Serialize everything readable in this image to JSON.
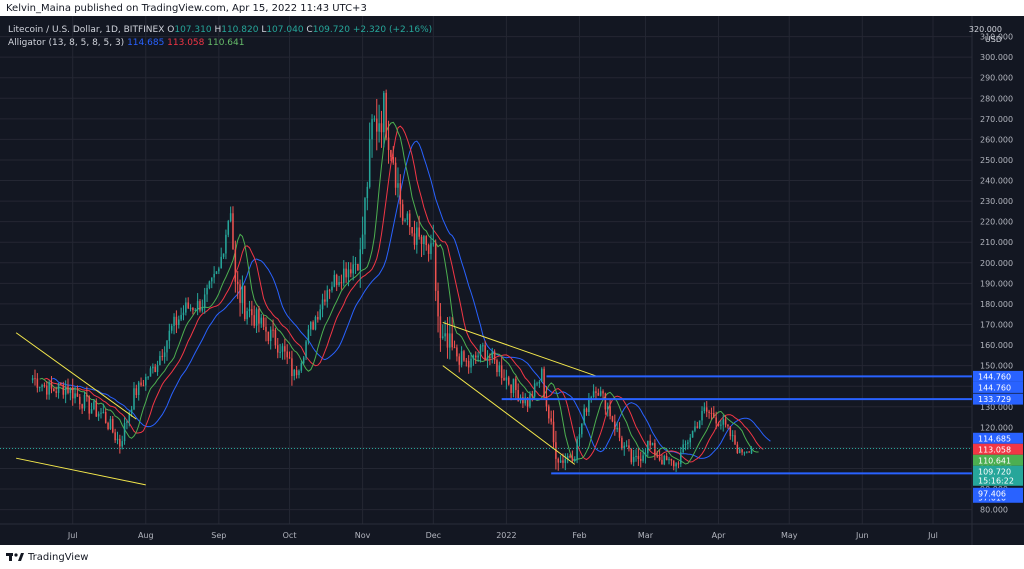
{
  "publisher": "Kelvin_Maina published on TradingView.com, Apr 15, 2022 11:43 UTC+3",
  "legend": {
    "symbol": "Litecoin / U.S. Dollar, 1D, BITFINEX",
    "open_label": "O",
    "open": "107.310",
    "high_label": "H",
    "high": "110.820",
    "low_label": "L",
    "low": "107.040",
    "close_label": "C",
    "close": "109.720",
    "change": "+2.320 (+2.16%)",
    "indicator": "Alligator (13, 8, 5, 8, 5, 3)",
    "jaw": "114.685",
    "teeth": "113.058",
    "lips": "110.641"
  },
  "axis_header": {
    "top_price": "320.000",
    "currency": "USD"
  },
  "footer": {
    "brand": "TradingView",
    "logo_icon": "tradingview-logo-icon"
  },
  "colors": {
    "background": "#131722",
    "grid": "#242733",
    "up": "#26a69a",
    "down": "#ef5350",
    "jaw": "#2962ff",
    "teeth": "#f23645",
    "lips": "#4caf50",
    "trendline": "#f5e94c",
    "level": "#2962ff",
    "text": "#b2b5be"
  },
  "chart_data": {
    "type": "candlestick",
    "title": "Litecoin / U.S. Dollar, 1D, BITFINEX",
    "x_ticks": [
      "Jul",
      "Aug",
      "Sep",
      "Oct",
      "Nov",
      "Dec",
      "2022",
      "Feb",
      "Mar",
      "Apr",
      "May",
      "Jun",
      "Jul"
    ],
    "y_ticks": [
      80,
      90,
      100,
      110,
      120,
      130,
      140,
      150,
      160,
      170,
      180,
      190,
      200,
      210,
      220,
      230,
      240,
      250,
      260,
      270,
      280,
      290,
      300,
      310
    ],
    "ylim": [
      73,
      320
    ],
    "grid": true,
    "price_labels": [
      {
        "value": 144.76,
        "text": "144.760",
        "color": "#2962ff"
      },
      {
        "value": 144.76,
        "text": "144.760",
        "color": "#2962ff"
      },
      {
        "value": 133.729,
        "text": "133.729",
        "color": "#2962ff"
      },
      {
        "value": 114.685,
        "text": "114.685",
        "color": "#2962ff"
      },
      {
        "value": 113.058,
        "text": "113.058",
        "color": "#f23645"
      },
      {
        "value": 110.641,
        "text": "110.641",
        "color": "#4caf50"
      },
      {
        "value": 109.72,
        "text": "109.720",
        "color": "#26a69a",
        "sub": "15:16:22"
      },
      {
        "value": 97.616,
        "text": "97.616",
        "color": "#2962ff"
      },
      {
        "value": 97.406,
        "text": "97.406",
        "color": "#2962ff"
      }
    ],
    "horizontal_levels": [
      {
        "value": 144.76,
        "from": "2022-01-18",
        "name": "resistance-144"
      },
      {
        "value": 133.729,
        "from": "2021-12-30",
        "name": "resistance-133"
      },
      {
        "value": 97.616,
        "from": "2022-01-20",
        "name": "support-97"
      }
    ],
    "trendlines": [
      {
        "x1": "2021-06-07",
        "y1": 166,
        "x2": "2021-07-28",
        "y2": 124
      },
      {
        "x1": "2021-06-07",
        "y1": 105,
        "x2": "2021-08-01",
        "y2": 92
      },
      {
        "x1": "2021-12-05",
        "y1": 171,
        "x2": "2022-02-08",
        "y2": 145
      },
      {
        "x1": "2021-12-05",
        "y1": 150,
        "x2": "2022-01-30",
        "y2": 102
      }
    ],
    "anchor_points": [
      {
        "date": "2021-06-14",
        "close": 144,
        "low": 136,
        "high": 150
      },
      {
        "date": "2021-06-22",
        "close": 138,
        "low": 125,
        "high": 145
      },
      {
        "date": "2021-06-28",
        "close": 140,
        "low": 130,
        "high": 146
      },
      {
        "date": "2021-07-08",
        "close": 130,
        "low": 120,
        "high": 138
      },
      {
        "date": "2021-07-14",
        "close": 126,
        "low": 115,
        "high": 132
      },
      {
        "date": "2021-07-21",
        "close": 112,
        "low": 103,
        "high": 120
      },
      {
        "date": "2021-07-27",
        "close": 136,
        "low": 128,
        "high": 142
      },
      {
        "date": "2021-08-05",
        "close": 150,
        "low": 142,
        "high": 156
      },
      {
        "date": "2021-08-12",
        "close": 168,
        "low": 160,
        "high": 180
      },
      {
        "date": "2021-08-18",
        "close": 178,
        "low": 170,
        "high": 186
      },
      {
        "date": "2021-08-25",
        "close": 180,
        "low": 172,
        "high": 188
      },
      {
        "date": "2021-09-01",
        "close": 196,
        "low": 186,
        "high": 205
      },
      {
        "date": "2021-09-06",
        "close": 228,
        "low": 215,
        "high": 232
      },
      {
        "date": "2021-09-08",
        "close": 188,
        "low": 172,
        "high": 210
      },
      {
        "date": "2021-09-13",
        "close": 178,
        "low": 168,
        "high": 190
      },
      {
        "date": "2021-09-20",
        "close": 168,
        "low": 160,
        "high": 180
      },
      {
        "date": "2021-09-27",
        "close": 160,
        "low": 150,
        "high": 170
      },
      {
        "date": "2021-10-03",
        "close": 145,
        "low": 140,
        "high": 158
      },
      {
        "date": "2021-10-10",
        "close": 168,
        "low": 158,
        "high": 175
      },
      {
        "date": "2021-10-17",
        "close": 188,
        "low": 180,
        "high": 200
      },
      {
        "date": "2021-10-24",
        "close": 196,
        "low": 188,
        "high": 205
      },
      {
        "date": "2021-10-31",
        "close": 202,
        "low": 194,
        "high": 215
      },
      {
        "date": "2021-11-05",
        "close": 265,
        "low": 225,
        "high": 275
      },
      {
        "date": "2021-11-10",
        "close": 275,
        "low": 255,
        "high": 295
      },
      {
        "date": "2021-11-14",
        "close": 252,
        "low": 240,
        "high": 280
      },
      {
        "date": "2021-11-18",
        "close": 222,
        "low": 210,
        "high": 238
      },
      {
        "date": "2021-11-24",
        "close": 212,
        "low": 204,
        "high": 228
      },
      {
        "date": "2021-12-01",
        "close": 202,
        "low": 190,
        "high": 218
      },
      {
        "date": "2021-12-04",
        "close": 160,
        "low": 128,
        "high": 178
      },
      {
        "date": "2021-12-10",
        "close": 156,
        "low": 148,
        "high": 166
      },
      {
        "date": "2021-12-16",
        "close": 150,
        "low": 142,
        "high": 158
      },
      {
        "date": "2021-12-22",
        "close": 158,
        "low": 150,
        "high": 166
      },
      {
        "date": "2021-12-28",
        "close": 150,
        "low": 142,
        "high": 160
      },
      {
        "date": "2022-01-05",
        "close": 138,
        "low": 130,
        "high": 148
      },
      {
        "date": "2022-01-10",
        "close": 132,
        "low": 124,
        "high": 140
      },
      {
        "date": "2022-01-16",
        "close": 145,
        "low": 138,
        "high": 150
      },
      {
        "date": "2022-01-21",
        "close": 112,
        "low": 100,
        "high": 130
      },
      {
        "date": "2022-01-24",
        "close": 104,
        "low": 97,
        "high": 112
      },
      {
        "date": "2022-01-30",
        "close": 108,
        "low": 100,
        "high": 116
      },
      {
        "date": "2022-02-05",
        "close": 135,
        "low": 125,
        "high": 140
      },
      {
        "date": "2022-02-08",
        "close": 140,
        "low": 132,
        "high": 146
      },
      {
        "date": "2022-02-13",
        "close": 130,
        "low": 122,
        "high": 136
      },
      {
        "date": "2022-02-19",
        "close": 112,
        "low": 105,
        "high": 120
      },
      {
        "date": "2022-02-24",
        "close": 102,
        "low": 92,
        "high": 110
      },
      {
        "date": "2022-03-02",
        "close": 112,
        "low": 104,
        "high": 118
      },
      {
        "date": "2022-03-08",
        "close": 104,
        "low": 98,
        "high": 110
      },
      {
        "date": "2022-03-14",
        "close": 102,
        "low": 97,
        "high": 108
      },
      {
        "date": "2022-03-20",
        "close": 116,
        "low": 108,
        "high": 120
      },
      {
        "date": "2022-03-26",
        "close": 128,
        "low": 120,
        "high": 132
      },
      {
        "date": "2022-03-31",
        "close": 125,
        "low": 118,
        "high": 134
      },
      {
        "date": "2022-04-05",
        "close": 118,
        "low": 112,
        "high": 126
      },
      {
        "date": "2022-04-10",
        "close": 108,
        "low": 104,
        "high": 114
      },
      {
        "date": "2022-04-15",
        "close": 109.72,
        "low": 107.04,
        "high": 110.82
      }
    ]
  }
}
